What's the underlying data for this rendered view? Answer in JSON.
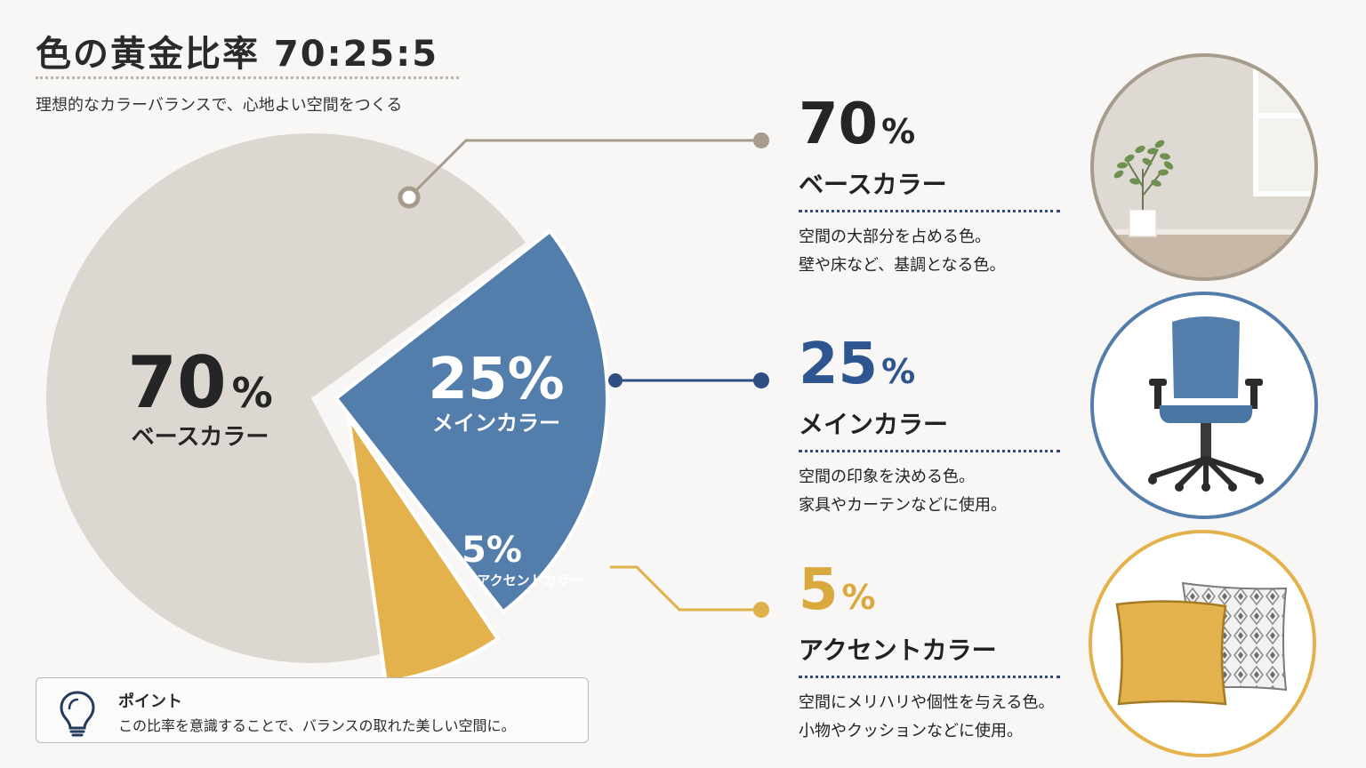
{
  "header": {
    "title": "色の黄金比率 70:25:5",
    "subtitle": "理想的なカラーバランスで、心地よい空間をつくる"
  },
  "colors": {
    "base": "#dcd8d1",
    "main": "#537dab",
    "accent": "#e3b24c",
    "base_text": "#252525",
    "main_text": "#2d5590",
    "accent_text": "#d9a93e",
    "base_line": "#a79b8c",
    "main_line": "#2e4f82",
    "accent_line": "#e0b04a"
  },
  "chart_data": {
    "type": "pie",
    "slices": [
      {
        "key": "base",
        "value": 70,
        "pct_label": "70",
        "pct_sign": "%",
        "name": "ベースカラー"
      },
      {
        "key": "main",
        "value": 25,
        "pct_label": "25%",
        "name": "メインカラー"
      },
      {
        "key": "accent",
        "value": 5,
        "pct_label": "5%",
        "name": "アクセントカラー"
      }
    ]
  },
  "legend": [
    {
      "key": "base",
      "pct": "70",
      "sign": "%",
      "name": "ベースカラー",
      "desc1": "空間の大部分を占める色。",
      "desc2": "壁や床など、基調となる色。",
      "icon": "room-plant-icon"
    },
    {
      "key": "main",
      "pct": "25",
      "sign": "%",
      "name": "メインカラー",
      "desc1": "空間の印象を決める色。",
      "desc2": "家具やカーテンなどに使用。",
      "icon": "office-chair-icon"
    },
    {
      "key": "accent",
      "pct": "5",
      "sign": "%",
      "name": "アクセントカラー",
      "desc1": "空間にメリハリや個性を与える色。",
      "desc2": "小物やクッションなどに使用。",
      "icon": "cushion-icon"
    }
  ],
  "point": {
    "title": "ポイント",
    "text": "この比率を意識することで、バランスの取れた美しい空間に。",
    "icon": "lightbulb-icon"
  }
}
